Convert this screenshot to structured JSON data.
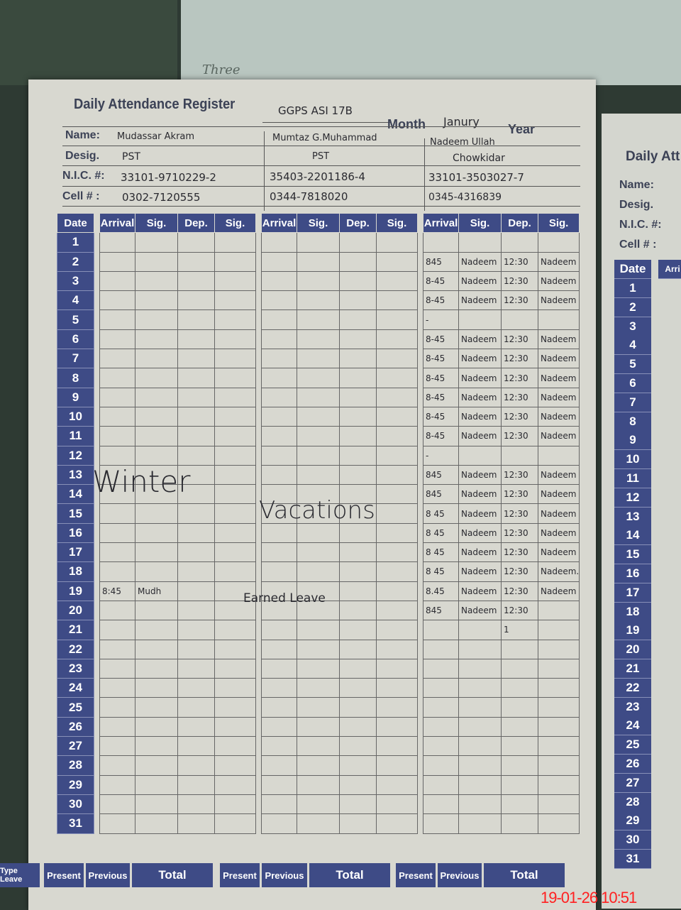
{
  "background": {
    "note_word": "Three"
  },
  "register": {
    "title": "Daily Attendance Register",
    "school": "GGPS ASI 17B",
    "month_label": "Month",
    "month": "Janury",
    "year_label": "Year",
    "year": ""
  },
  "labels": {
    "name": "Name:",
    "desig": "Desig.",
    "nic": "N.I.C. #:",
    "cell": "Cell # :",
    "date": "Date"
  },
  "staff": [
    {
      "name": "Mudassar Akram",
      "desig": "PST",
      "nic": "33101-9710229-2",
      "cell": "0302-7120555"
    },
    {
      "name": "Mumtaz G.Muhammad",
      "desig": "PST",
      "nic": "35403-2201186-4",
      "cell": "0344-7818020"
    },
    {
      "name": "Nadeem Ullah",
      "desig": "Chowkidar",
      "nic": "33101-3503027-7",
      "cell": "0345-4316839"
    }
  ],
  "columns": [
    "Arrival",
    "Sig.",
    "Dep.",
    "Sig."
  ],
  "days": [
    1,
    2,
    3,
    4,
    5,
    6,
    7,
    8,
    9,
    10,
    11,
    12,
    13,
    14,
    15,
    16,
    17,
    18,
    19,
    20,
    21,
    22,
    23,
    24,
    25,
    26,
    27,
    28,
    29,
    30,
    31
  ],
  "attendance": {
    "staff_1": {
      "19": [
        "8:45",
        "Mudh",
        "",
        ""
      ]
    },
    "staff_3": {
      "2": [
        "845",
        "Nadeem",
        "12:30",
        "Nadeem"
      ],
      "3": [
        "8-45",
        "Nadeem",
        "12:30",
        "Nadeem"
      ],
      "4": [
        "8-45",
        "Nadeem",
        "12:30",
        "Nadeem"
      ],
      "5": [
        "-",
        "",
        "",
        ""
      ],
      "6": [
        "8-45",
        "Nadeem",
        "12:30",
        "Nadeem"
      ],
      "7": [
        "8-45",
        "Nadeem",
        "12:30",
        "Nadeem"
      ],
      "8": [
        "8-45",
        "Nadeem",
        "12:30",
        "Nadeem"
      ],
      "9": [
        "8-45",
        "Nadeem",
        "12:30",
        "Nadeem"
      ],
      "10": [
        "8-45",
        "Nadeem",
        "12:30",
        "Nadeem"
      ],
      "11": [
        "8-45",
        "Nadeem",
        "12:30",
        "Nadeem"
      ],
      "12": [
        "-",
        "",
        "",
        ""
      ],
      "13": [
        "845",
        "Nadeem",
        "12:30",
        "Nadeem"
      ],
      "14": [
        "845",
        "Nadeem",
        "12:30",
        "Nadeem"
      ],
      "15": [
        "8 45",
        "Nadeem",
        "12:30",
        "Nadeem"
      ],
      "16": [
        "8 45",
        "Nadeem",
        "12:30",
        "Nadeem"
      ],
      "17": [
        "8 45",
        "Nadeem",
        "12:30",
        "Nadeem"
      ],
      "18": [
        "8 45",
        "Nadeem",
        "12:30",
        "Nadeem."
      ],
      "19": [
        "8.45",
        "Nadeem",
        "12:30",
        "Nadeem"
      ],
      "20": [
        "845",
        "Nadeem",
        "12:30",
        ""
      ],
      "21": [
        "",
        "",
        "1",
        ""
      ]
    }
  },
  "annotations": {
    "winter": "Winter",
    "vacations": "Vacations",
    "earned_leave": "Earned Leave"
  },
  "footer": {
    "type_leave": "Type Leave",
    "present": "Present",
    "previous": "Previous",
    "total": "Total"
  },
  "next_page": {
    "title": "Daily Att",
    "name": "Name:",
    "desig": "Desig.",
    "nic": "N.I.C. #:",
    "cell": "Cell # :",
    "date": "Date",
    "arrival": "Arri"
  },
  "timestamp": "19-01-26  10:51",
  "colors": {
    "header_blue": "#3e4b86",
    "paper": "#d8d8d0",
    "timestamp_red": "#ff2020"
  }
}
